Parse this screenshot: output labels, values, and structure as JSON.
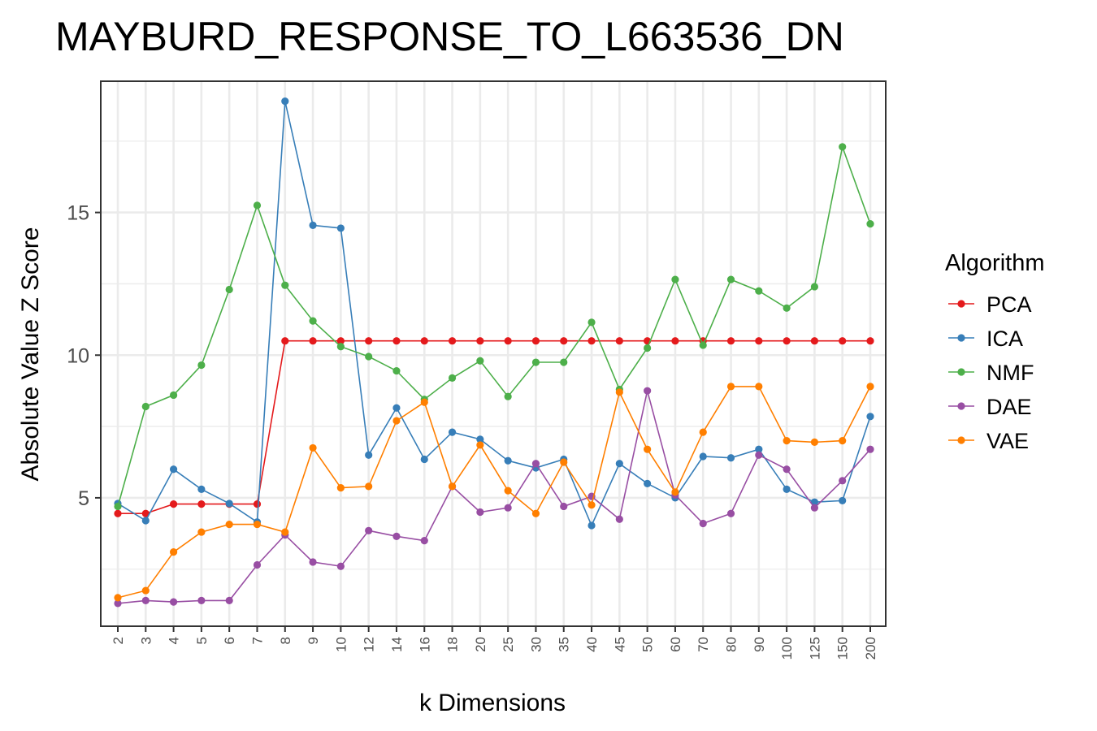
{
  "chart_data": {
    "type": "line",
    "title": "MAYBURD_RESPONSE_TO_L663536_DN",
    "xlabel": "k Dimensions",
    "ylabel": "Absolute Value Z Score",
    "categories": [
      "2",
      "3",
      "4",
      "5",
      "6",
      "7",
      "8",
      "9",
      "10",
      "12",
      "14",
      "16",
      "18",
      "20",
      "25",
      "30",
      "35",
      "40",
      "45",
      "50",
      "60",
      "70",
      "80",
      "90",
      "100",
      "125",
      "150",
      "200"
    ],
    "y_ticks": [
      5,
      10,
      15
    ],
    "ylim": [
      0.5,
      19.6
    ],
    "grid": true,
    "legend": {
      "title": "Algorithm",
      "position": "right"
    },
    "series": [
      {
        "name": "PCA",
        "color": "#E41A1C",
        "values": [
          4.45,
          4.45,
          4.78,
          4.78,
          4.78,
          4.78,
          10.5,
          10.5,
          10.5,
          10.5,
          10.5,
          10.5,
          10.5,
          10.5,
          10.5,
          10.5,
          10.5,
          10.5,
          10.5,
          10.5,
          10.5,
          10.5,
          10.5,
          10.5,
          10.5,
          10.5,
          10.5,
          10.5
        ]
      },
      {
        "name": "ICA",
        "color": "#377EB8",
        "values": [
          4.8,
          4.2,
          6.0,
          5.3,
          4.8,
          4.15,
          18.9,
          14.55,
          14.45,
          6.5,
          8.15,
          6.35,
          7.3,
          7.05,
          6.3,
          6.05,
          6.35,
          4.03,
          6.2,
          5.5,
          5.0,
          6.45,
          6.4,
          6.7,
          5.3,
          4.85,
          4.9,
          7.85
        ]
      },
      {
        "name": "NMF",
        "color": "#4DAF4A",
        "values": [
          4.7,
          8.2,
          8.6,
          9.65,
          12.3,
          15.25,
          12.45,
          11.2,
          10.3,
          9.95,
          9.45,
          8.45,
          9.2,
          9.8,
          8.55,
          9.75,
          9.75,
          11.15,
          8.8,
          10.25,
          12.65,
          10.35,
          12.65,
          12.25,
          11.65,
          12.4,
          17.3,
          14.6
        ]
      },
      {
        "name": "DAE",
        "color": "#984EA3",
        "values": [
          1.3,
          1.4,
          1.35,
          1.4,
          1.4,
          2.65,
          3.7,
          2.75,
          2.6,
          3.85,
          3.65,
          3.5,
          5.4,
          4.5,
          4.65,
          6.2,
          4.7,
          5.05,
          4.25,
          8.75,
          5.1,
          4.1,
          4.45,
          6.5,
          6.0,
          4.65,
          5.6,
          6.7
        ]
      },
      {
        "name": "VAE",
        "color": "#FF7F00",
        "values": [
          1.5,
          1.75,
          3.1,
          3.8,
          4.07,
          4.07,
          3.8,
          6.75,
          5.35,
          5.4,
          7.7,
          8.35,
          5.4,
          6.85,
          5.25,
          4.45,
          6.25,
          4.75,
          8.7,
          6.7,
          5.2,
          7.3,
          8.9,
          8.9,
          7.0,
          6.95,
          7.0,
          8.9
        ]
      }
    ]
  }
}
